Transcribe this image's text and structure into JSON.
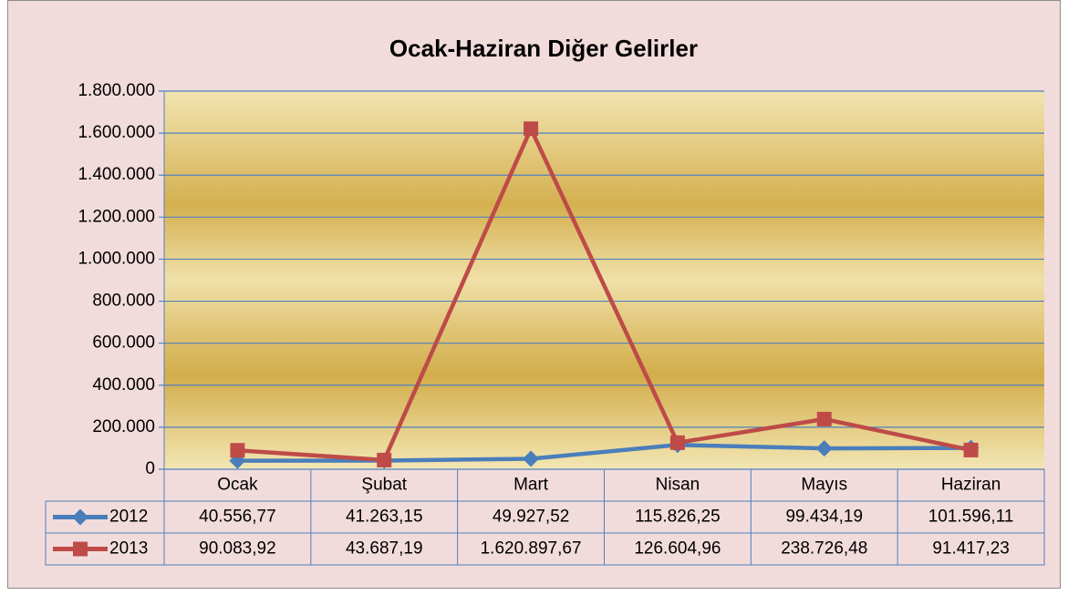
{
  "chart_data": {
    "type": "line",
    "title": "Ocak-Haziran Diğer Gelirler",
    "categories": [
      "Ocak",
      "Şubat",
      "Mart",
      "Nisan",
      "Mayıs",
      "Haziran"
    ],
    "series": [
      {
        "name": "2012",
        "color": "#4a7ebb",
        "marker": "diamond",
        "values": [
          40556.77,
          41263.15,
          49927.52,
          115826.25,
          99434.19,
          101596.11
        ],
        "value_labels": [
          "40.556,77",
          "41.263,15",
          "49.927,52",
          "115.826,25",
          "99.434,19",
          "101.596,11"
        ]
      },
      {
        "name": "2013",
        "color": "#be4b48",
        "marker": "square",
        "values": [
          90083.92,
          43687.19,
          1620897.67,
          126604.96,
          238726.48,
          91417.23
        ],
        "value_labels": [
          "90.083,92",
          "43.687,19",
          "1.620.897,67",
          "126.604,96",
          "238.726,48",
          "91.417,23"
        ]
      }
    ],
    "ylim": [
      0,
      1800000
    ],
    "yticks": [
      0,
      {
        "value": 200000,
        "label": "200.000"
      },
      {
        "value": 400000,
        "label": "400.000"
      },
      {
        "value": 600000,
        "label": "600.000"
      },
      {
        "value": 800000,
        "label": "800.000"
      },
      {
        "value": 1000000,
        "label": "1.000.000"
      },
      {
        "value": 1200000,
        "label": "1.200.000"
      },
      {
        "value": 1400000,
        "label": "1.400.000"
      },
      {
        "value": 1600000,
        "label": "1.600.000"
      },
      {
        "value": 1800000,
        "label": "1.800.000"
      }
    ],
    "grid": true
  }
}
